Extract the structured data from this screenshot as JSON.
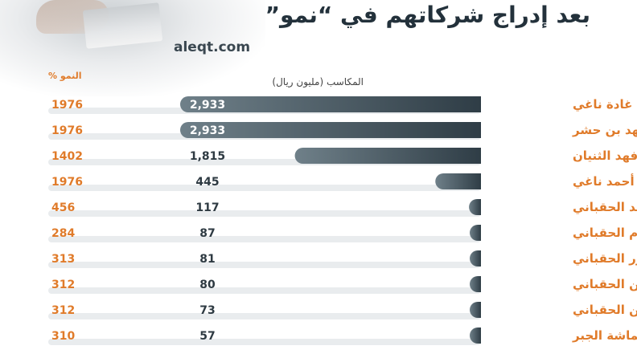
{
  "header": {
    "title": "بعد إدراج شركاتهم في “نمو”",
    "source": "aleqt.com"
  },
  "chart_data": {
    "type": "bar",
    "earnings_label": "المكاسب (مليون ريال)",
    "growth_label": "النمو %",
    "categories": [
      "غادة ناغي",
      "فهد بن حشر",
      "فهد الثنيان",
      "أحمد ناغي",
      "أحمد الحقباني",
      "هشام الحقباني",
      "منصور الحقباني",
      "عبدالمحسن الحقباني",
      "عبدالرحمن الحقباني",
      "قماشة الجبر"
    ],
    "values": [
      2933,
      2933,
      1815,
      445,
      117,
      87,
      81,
      80,
      73,
      57
    ],
    "value_labels": [
      "2,933",
      "2,933",
      "1,815",
      "445",
      "117",
      "87",
      "81",
      "80",
      "73",
      "57"
    ],
    "growth_values": [
      1976,
      1976,
      1402,
      1976,
      456,
      284,
      313,
      312,
      312,
      310
    ],
    "xlim": [
      0,
      2933
    ],
    "colors": {
      "bar_dark": "#3a4a54",
      "bar_light": "#6f8089",
      "accent": "#e07b2a",
      "row_bg": "#e9ecee"
    }
  }
}
